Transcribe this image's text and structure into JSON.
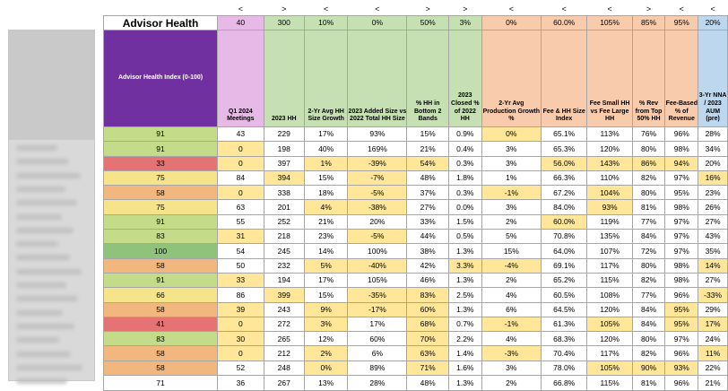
{
  "title": "Advisor Health",
  "directions": [
    "",
    "<",
    ">",
    "<",
    "<",
    ">",
    ">",
    "<",
    "<",
    "<",
    ">",
    "<",
    "<"
  ],
  "targets": [
    "",
    "40",
    "300",
    "10%",
    "0%",
    "50%",
    "3%",
    "0%",
    "60.0%",
    "105%",
    "85%",
    "95%",
    "20%"
  ],
  "headers": [
    "Advisor Health Index (0-100)",
    "Q1 2024 Meetings",
    "2023 HH",
    "2-Yr Avg HH Size Growth",
    "2023 Added Size vs 2022 Total HH Size",
    "% HH in Bottom 2 Bands",
    "2023 Closed % of 2022 HH",
    "2-Yr Avg Production Growth %",
    "Fee & HH Size Index",
    "Fee Small HH vs Fee Large HH",
    "% Rev from Top 50% HH",
    "Fee-Based % of Revenue",
    "3-Yr NNA / 2023 AUM (pre)"
  ],
  "header_fill": [
    "purple",
    "pink",
    "green",
    "green",
    "green",
    "green",
    "green",
    "peach",
    "peach",
    "peach",
    "peach",
    "peach",
    "blue"
  ],
  "colors": {
    "purple": "#7030a0",
    "pink": "#e6b9e6",
    "green": "#c6e0b4",
    "peach": "#f8cbad",
    "blue": "#bdd7ee",
    "highlight": "#ffe699"
  },
  "rows": [
    {
      "v": [
        "91",
        "43",
        "229",
        "17%",
        "93%",
        "15%",
        "0.9%",
        "0%",
        "65.1%",
        "113%",
        "76%",
        "96%",
        "28%"
      ],
      "s": "lg",
      "h": [
        7
      ]
    },
    {
      "v": [
        "91",
        "0",
        "198",
        "40%",
        "169%",
        "21%",
        "0.4%",
        "3%",
        "65.3%",
        "120%",
        "80%",
        "98%",
        "34%"
      ],
      "s": "lg",
      "h": [
        1
      ]
    },
    {
      "v": [
        "33",
        "0",
        "397",
        "1%",
        "-39%",
        "54%",
        "0.3%",
        "3%",
        "56.0%",
        "143%",
        "86%",
        "94%",
        "20%"
      ],
      "s": "r",
      "h": [
        1,
        3,
        4,
        5,
        8,
        9,
        10,
        11
      ]
    },
    {
      "v": [
        "75",
        "84",
        "394",
        "15%",
        "-7%",
        "48%",
        "1.8%",
        "1%",
        "66.3%",
        "110%",
        "82%",
        "97%",
        "16%"
      ],
      "s": "y",
      "h": [
        2,
        4,
        12
      ]
    },
    {
      "v": [
        "58",
        "0",
        "338",
        "18%",
        "-5%",
        "37%",
        "0.3%",
        "-1%",
        "67.2%",
        "104%",
        "80%",
        "95%",
        "23%"
      ],
      "s": "o",
      "h": [
        1,
        4,
        7,
        9
      ]
    },
    {
      "v": [
        "75",
        "63",
        "201",
        "4%",
        "-38%",
        "27%",
        "0.0%",
        "3%",
        "84.0%",
        "93%",
        "81%",
        "98%",
        "26%"
      ],
      "s": "y",
      "h": [
        3,
        4,
        9
      ]
    },
    {
      "v": [
        "91",
        "55",
        "252",
        "21%",
        "20%",
        "33%",
        "1.5%",
        "2%",
        "60.0%",
        "119%",
        "77%",
        "97%",
        "27%"
      ],
      "s": "lg",
      "h": [
        8
      ]
    },
    {
      "v": [
        "83",
        "31",
        "218",
        "23%",
        "-5%",
        "44%",
        "0.5%",
        "5%",
        "70.8%",
        "135%",
        "84%",
        "97%",
        "43%"
      ],
      "s": "lg",
      "h": [
        1,
        4
      ]
    },
    {
      "v": [
        "100",
        "54",
        "245",
        "14%",
        "100%",
        "38%",
        "1.3%",
        "15%",
        "64.0%",
        "107%",
        "72%",
        "97%",
        "35%"
      ],
      "s": "dg",
      "h": []
    },
    {
      "v": [
        "58",
        "50",
        "232",
        "5%",
        "-40%",
        "42%",
        "3.3%",
        "-4%",
        "69.1%",
        "117%",
        "80%",
        "98%",
        "14%"
      ],
      "s": "o",
      "h": [
        3,
        4,
        6,
        7,
        12
      ]
    },
    {
      "v": [
        "91",
        "33",
        "194",
        "17%",
        "105%",
        "46%",
        "1.3%",
        "2%",
        "65.2%",
        "115%",
        "82%",
        "98%",
        "27%"
      ],
      "s": "lg",
      "h": [
        1
      ]
    },
    {
      "v": [
        "66",
        "86",
        "399",
        "15%",
        "-35%",
        "83%",
        "2.5%",
        "4%",
        "60.5%",
        "108%",
        "77%",
        "96%",
        "-33%"
      ],
      "s": "y",
      "h": [
        2,
        4,
        5,
        12
      ]
    },
    {
      "v": [
        "58",
        "39",
        "243",
        "9%",
        "-17%",
        "60%",
        "1.3%",
        "6%",
        "64.5%",
        "120%",
        "84%",
        "95%",
        "29%"
      ],
      "s": "o",
      "h": [
        1,
        3,
        4,
        5,
        11
      ]
    },
    {
      "v": [
        "41",
        "0",
        "272",
        "3%",
        "17%",
        "68%",
        "0.7%",
        "-1%",
        "61.3%",
        "105%",
        "84%",
        "95%",
        "17%"
      ],
      "s": "r",
      "h": [
        1,
        3,
        5,
        7,
        9,
        11,
        12
      ]
    },
    {
      "v": [
        "83",
        "30",
        "265",
        "12%",
        "60%",
        "70%",
        "2.2%",
        "4%",
        "68.3%",
        "120%",
        "80%",
        "97%",
        "24%"
      ],
      "s": "lg",
      "h": [
        1,
        5
      ]
    },
    {
      "v": [
        "58",
        "0",
        "212",
        "2%",
        "6%",
        "63%",
        "1.4%",
        "-3%",
        "70.4%",
        "117%",
        "82%",
        "96%",
        "11%"
      ],
      "s": "o",
      "h": [
        1,
        3,
        5,
        7,
        12
      ]
    },
    {
      "v": [
        "58",
        "52",
        "248",
        "0%",
        "89%",
        "71%",
        "1.6%",
        "3%",
        "78.0%",
        "105%",
        "90%",
        "93%",
        "22%"
      ],
      "s": "o",
      "h": [
        3,
        5,
        9,
        10,
        11
      ]
    }
  ],
  "average": [
    "71",
    "36",
    "267",
    "13%",
    "28%",
    "48%",
    "1.3%",
    "2%",
    "66.8%",
    "115%",
    "81%",
    "96%",
    "21%"
  ]
}
